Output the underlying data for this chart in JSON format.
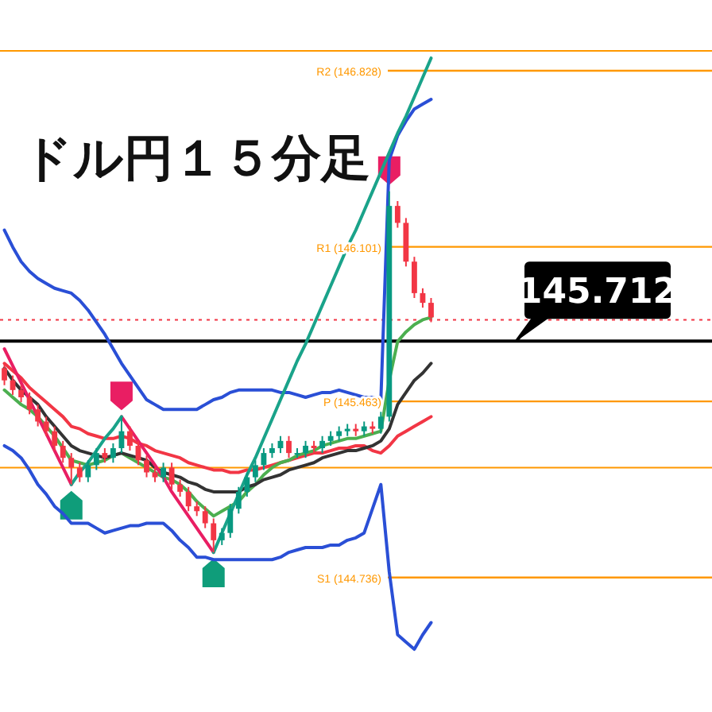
{
  "chart_data": {
    "type": "candlestick",
    "title": "ドル円１５分足",
    "ylim": [
      144.181,
      147.12
    ],
    "categories": [
      null,
      null,
      null,
      null,
      null,
      null,
      null,
      null,
      null,
      null,
      null,
      null,
      null,
      null,
      null,
      null,
      null,
      null,
      null,
      null,
      null,
      null,
      null,
      null,
      null,
      null,
      null,
      null,
      null,
      null,
      null,
      null,
      null,
      null,
      null,
      null,
      null,
      null,
      null,
      null,
      null,
      null,
      null,
      null,
      null,
      null,
      null,
      null,
      null,
      null,
      null,
      null
    ],
    "ohlc": [
      [
        145.6,
        145.62,
        145.53,
        145.55
      ],
      [
        145.55,
        145.57,
        145.49,
        145.51
      ],
      [
        145.51,
        145.53,
        145.46,
        145.48
      ],
      [
        145.48,
        145.5,
        145.41,
        145.43
      ],
      [
        145.43,
        145.45,
        145.36,
        145.38
      ],
      [
        145.38,
        145.4,
        145.32,
        145.34
      ],
      [
        145.34,
        145.36,
        145.26,
        145.28
      ],
      [
        145.28,
        145.3,
        145.21,
        145.23
      ],
      [
        145.23,
        145.25,
        145.12,
        145.19
      ],
      [
        145.19,
        145.21,
        145.13,
        145.15
      ],
      [
        145.15,
        145.22,
        145.13,
        145.2
      ],
      [
        145.2,
        145.27,
        145.18,
        145.25
      ],
      [
        145.25,
        145.27,
        145.21,
        145.23
      ],
      [
        145.23,
        145.29,
        145.21,
        145.27
      ],
      [
        145.27,
        145.4,
        145.25,
        145.34
      ],
      [
        145.34,
        145.36,
        145.26,
        145.28
      ],
      [
        145.28,
        145.3,
        145.2,
        145.22
      ],
      [
        145.22,
        145.24,
        145.15,
        145.17
      ],
      [
        145.17,
        145.19,
        145.13,
        145.15
      ],
      [
        145.15,
        145.21,
        145.13,
        145.19
      ],
      [
        145.19,
        145.21,
        145.1,
        145.12
      ],
      [
        145.12,
        145.14,
        145.07,
        145.09
      ],
      [
        145.09,
        145.11,
        145.01,
        145.03
      ],
      [
        145.03,
        145.05,
        144.99,
        145.01
      ],
      [
        145.01,
        145.03,
        144.94,
        144.96
      ],
      [
        144.96,
        144.98,
        144.84,
        144.89
      ],
      [
        144.89,
        144.94,
        144.87,
        144.92
      ],
      [
        144.92,
        145.04,
        144.9,
        145.02
      ],
      [
        145.02,
        145.11,
        145.0,
        145.09
      ],
      [
        145.09,
        145.17,
        145.07,
        145.15
      ],
      [
        145.15,
        145.22,
        145.13,
        145.2
      ],
      [
        145.2,
        145.27,
        145.18,
        145.25
      ],
      [
        145.25,
        145.29,
        145.23,
        145.27
      ],
      [
        145.27,
        145.32,
        145.25,
        145.3
      ],
      [
        145.3,
        145.32,
        145.23,
        145.25
      ],
      [
        145.25,
        145.27,
        145.23,
        145.25
      ],
      [
        145.25,
        145.3,
        145.23,
        145.28
      ],
      [
        145.28,
        145.3,
        145.25,
        145.27
      ],
      [
        145.27,
        145.32,
        145.25,
        145.3
      ],
      [
        145.3,
        145.34,
        145.28,
        145.32
      ],
      [
        145.32,
        145.36,
        145.3,
        145.34
      ],
      [
        145.34,
        145.37,
        145.32,
        145.35
      ],
      [
        145.35,
        145.37,
        145.32,
        145.34
      ],
      [
        145.34,
        145.38,
        145.32,
        145.36
      ],
      [
        145.36,
        145.38,
        145.33,
        145.35
      ],
      [
        145.35,
        145.42,
        145.33,
        145.4
      ],
      [
        145.4,
        146.33,
        145.38,
        146.27
      ],
      [
        146.27,
        146.29,
        146.18,
        146.2
      ],
      [
        146.2,
        146.22,
        146.02,
        146.04
      ],
      [
        146.04,
        146.06,
        145.89,
        145.91
      ],
      [
        145.91,
        145.93,
        145.85,
        145.87
      ],
      [
        145.87,
        145.89,
        145.79,
        145.81
      ]
    ],
    "colors": [
      "#f23645",
      "#f23645",
      "#f23645",
      "#f23645",
      "#f23645",
      "#f23645",
      "#f23645",
      "#f23645",
      "#f23645",
      "#f23645",
      "#089981",
      "#089981",
      "#f23645",
      "#089981",
      "#089981",
      "#f23645",
      "#f23645",
      "#f23645",
      "#f23645",
      "#089981",
      "#f23645",
      "#f23645",
      "#f23645",
      "#f23645",
      "#f23645",
      "#f23645",
      "#089981",
      "#089981",
      "#089981",
      "#089981",
      "#089981",
      "#089981",
      "#089981",
      "#089981",
      "#f23645",
      "#089981",
      "#089981",
      "#f23645",
      "#089981",
      "#089981",
      "#089981",
      "#089981",
      "#f23645",
      "#089981",
      "#f23645",
      "#089981",
      "#089981",
      "#f23645",
      "#f23645",
      "#f23645",
      "#f23645",
      "#f23645"
    ],
    "series": [
      {
        "type": "line",
        "color": "#f23645",
        "values": [
          145.62,
          145.59,
          145.56,
          145.52,
          145.49,
          145.46,
          145.43,
          145.4,
          145.36,
          145.35,
          145.33,
          145.32,
          145.31,
          145.31,
          145.32,
          145.31,
          145.29,
          145.28,
          145.26,
          145.25,
          145.24,
          145.23,
          145.21,
          145.2,
          145.19,
          145.18,
          145.18,
          145.17,
          145.17,
          145.18,
          145.18,
          145.19,
          145.2,
          145.21,
          145.22,
          145.23,
          145.24,
          145.25,
          145.25,
          145.26,
          145.27,
          145.27,
          145.28,
          145.28,
          145.26,
          145.25,
          145.28,
          145.32,
          145.34,
          145.36,
          145.38,
          145.4
        ]
      },
      {
        "type": "line",
        "color": "#4caf50",
        "values": [
          145.51,
          145.48,
          145.45,
          145.43,
          145.4,
          145.36,
          145.32,
          145.27,
          145.22,
          145.21,
          145.2,
          145.21,
          145.22,
          145.24,
          145.25,
          145.23,
          145.21,
          145.19,
          145.17,
          145.15,
          145.14,
          145.12,
          145.09,
          145.05,
          145.02,
          144.99,
          145.01,
          145.03,
          145.05,
          145.09,
          145.12,
          145.16,
          145.19,
          145.21,
          145.22,
          145.24,
          145.25,
          145.26,
          145.28,
          145.29,
          145.3,
          145.31,
          145.31,
          145.32,
          145.33,
          145.34,
          145.55,
          145.71,
          145.75,
          145.78,
          145.8,
          145.81
        ]
      },
      {
        "type": "line",
        "color": "#333333",
        "values": [
          145.6,
          145.55,
          145.51,
          145.48,
          145.45,
          145.4,
          145.36,
          145.32,
          145.28,
          145.26,
          145.25,
          145.24,
          145.23,
          145.24,
          145.25,
          145.24,
          145.23,
          145.22,
          145.19,
          145.17,
          145.16,
          145.15,
          145.13,
          145.12,
          145.1,
          145.09,
          145.09,
          145.09,
          145.09,
          145.11,
          145.12,
          145.14,
          145.15,
          145.16,
          145.18,
          145.19,
          145.2,
          145.21,
          145.23,
          145.24,
          145.25,
          145.26,
          145.26,
          145.27,
          145.28,
          145.3,
          145.35,
          145.45,
          145.5,
          145.55,
          145.58,
          145.62
        ]
      },
      {
        "type": "line",
        "color": "#2a4fd6",
        "values": [
          146.17,
          146.1,
          146.04,
          146.0,
          145.97,
          145.95,
          145.93,
          145.92,
          145.91,
          145.88,
          145.84,
          145.79,
          145.74,
          145.68,
          145.62,
          145.57,
          145.52,
          145.47,
          145.45,
          145.43,
          145.43,
          145.43,
          145.43,
          145.43,
          145.45,
          145.47,
          145.48,
          145.5,
          145.51,
          145.51,
          145.51,
          145.51,
          145.51,
          145.5,
          145.5,
          145.49,
          145.48,
          145.49,
          145.5,
          145.5,
          145.51,
          145.5,
          145.49,
          145.48,
          145.48,
          145.47,
          146.46,
          146.56,
          146.62,
          146.67,
          146.69,
          146.71
        ]
      },
      {
        "type": "line",
        "color": "#2a4fd6",
        "values": [
          145.28,
          145.26,
          145.23,
          145.18,
          145.12,
          145.08,
          145.03,
          145.0,
          144.96,
          144.96,
          144.96,
          144.94,
          144.92,
          144.93,
          144.94,
          144.95,
          144.95,
          144.96,
          144.96,
          144.96,
          144.93,
          144.89,
          144.86,
          144.82,
          144.82,
          144.81,
          144.81,
          144.81,
          144.81,
          144.81,
          144.81,
          144.81,
          144.81,
          144.82,
          144.84,
          144.85,
          144.86,
          144.86,
          144.86,
          144.87,
          144.87,
          144.89,
          144.9,
          144.92,
          145.02,
          145.12,
          144.76,
          144.5,
          144.47,
          144.44,
          144.5,
          144.55
        ]
      },
      {
        "type": "line",
        "color": "#e91e63",
        "values": [
          145.68,
          145.61,
          145.54,
          145.47,
          145.4,
          145.33,
          145.26,
          145.19,
          145.12,
          null,
          null,
          null,
          null,
          null,
          145.4,
          145.35,
          145.3,
          145.25,
          145.2,
          145.15,
          145.09,
          145.04,
          144.99,
          144.94,
          144.89,
          144.84,
          null,
          null,
          null,
          null,
          null,
          null,
          null,
          null,
          null,
          null,
          null,
          null,
          null,
          null,
          null,
          null,
          null,
          null,
          null,
          null,
          null,
          null,
          null,
          null,
          null,
          null
        ]
      },
      {
        "type": "line",
        "color": "#1aa38a",
        "values": [
          null,
          null,
          null,
          null,
          null,
          null,
          null,
          null,
          145.12,
          145.17,
          145.21,
          145.26,
          145.31,
          145.35,
          145.4,
          null,
          null,
          null,
          null,
          null,
          null,
          null,
          null,
          null,
          null,
          144.84,
          144.92,
          145.0,
          145.08,
          145.16,
          145.23,
          145.31,
          145.39,
          145.47,
          145.55,
          145.63,
          145.7,
          145.78,
          145.86,
          145.94,
          146.02,
          146.1,
          146.17,
          146.25,
          146.33,
          146.41,
          146.49,
          146.57,
          146.64,
          146.72,
          146.8,
          146.88
        ]
      }
    ],
    "ref_lines": [
      {
        "axis": "y",
        "value": 146.828,
        "label": "R2 (146.828)",
        "color": "#ff9800"
      },
      {
        "axis": "y",
        "value": 146.101,
        "label": "R1 (146.101)",
        "color": "#ff9800"
      },
      {
        "axis": "y",
        "value": 145.463,
        "label": "P (145.463)",
        "color": "#ff9800"
      },
      {
        "axis": "y",
        "value": 144.736,
        "label": "S1 (144.736)",
        "color": "#ff9800"
      },
      {
        "axis": "y",
        "value": 145.712,
        "label": "145.712"
      },
      {
        "axis": "y",
        "value": 145.8,
        "color": "#f23645",
        "line_style": "dotted"
      },
      {
        "axis": "y",
        "value": 146.91,
        "color": "#ff9800"
      },
      {
        "axis": "y",
        "value": 145.19,
        "color": "#ff9800"
      }
    ]
  }
}
